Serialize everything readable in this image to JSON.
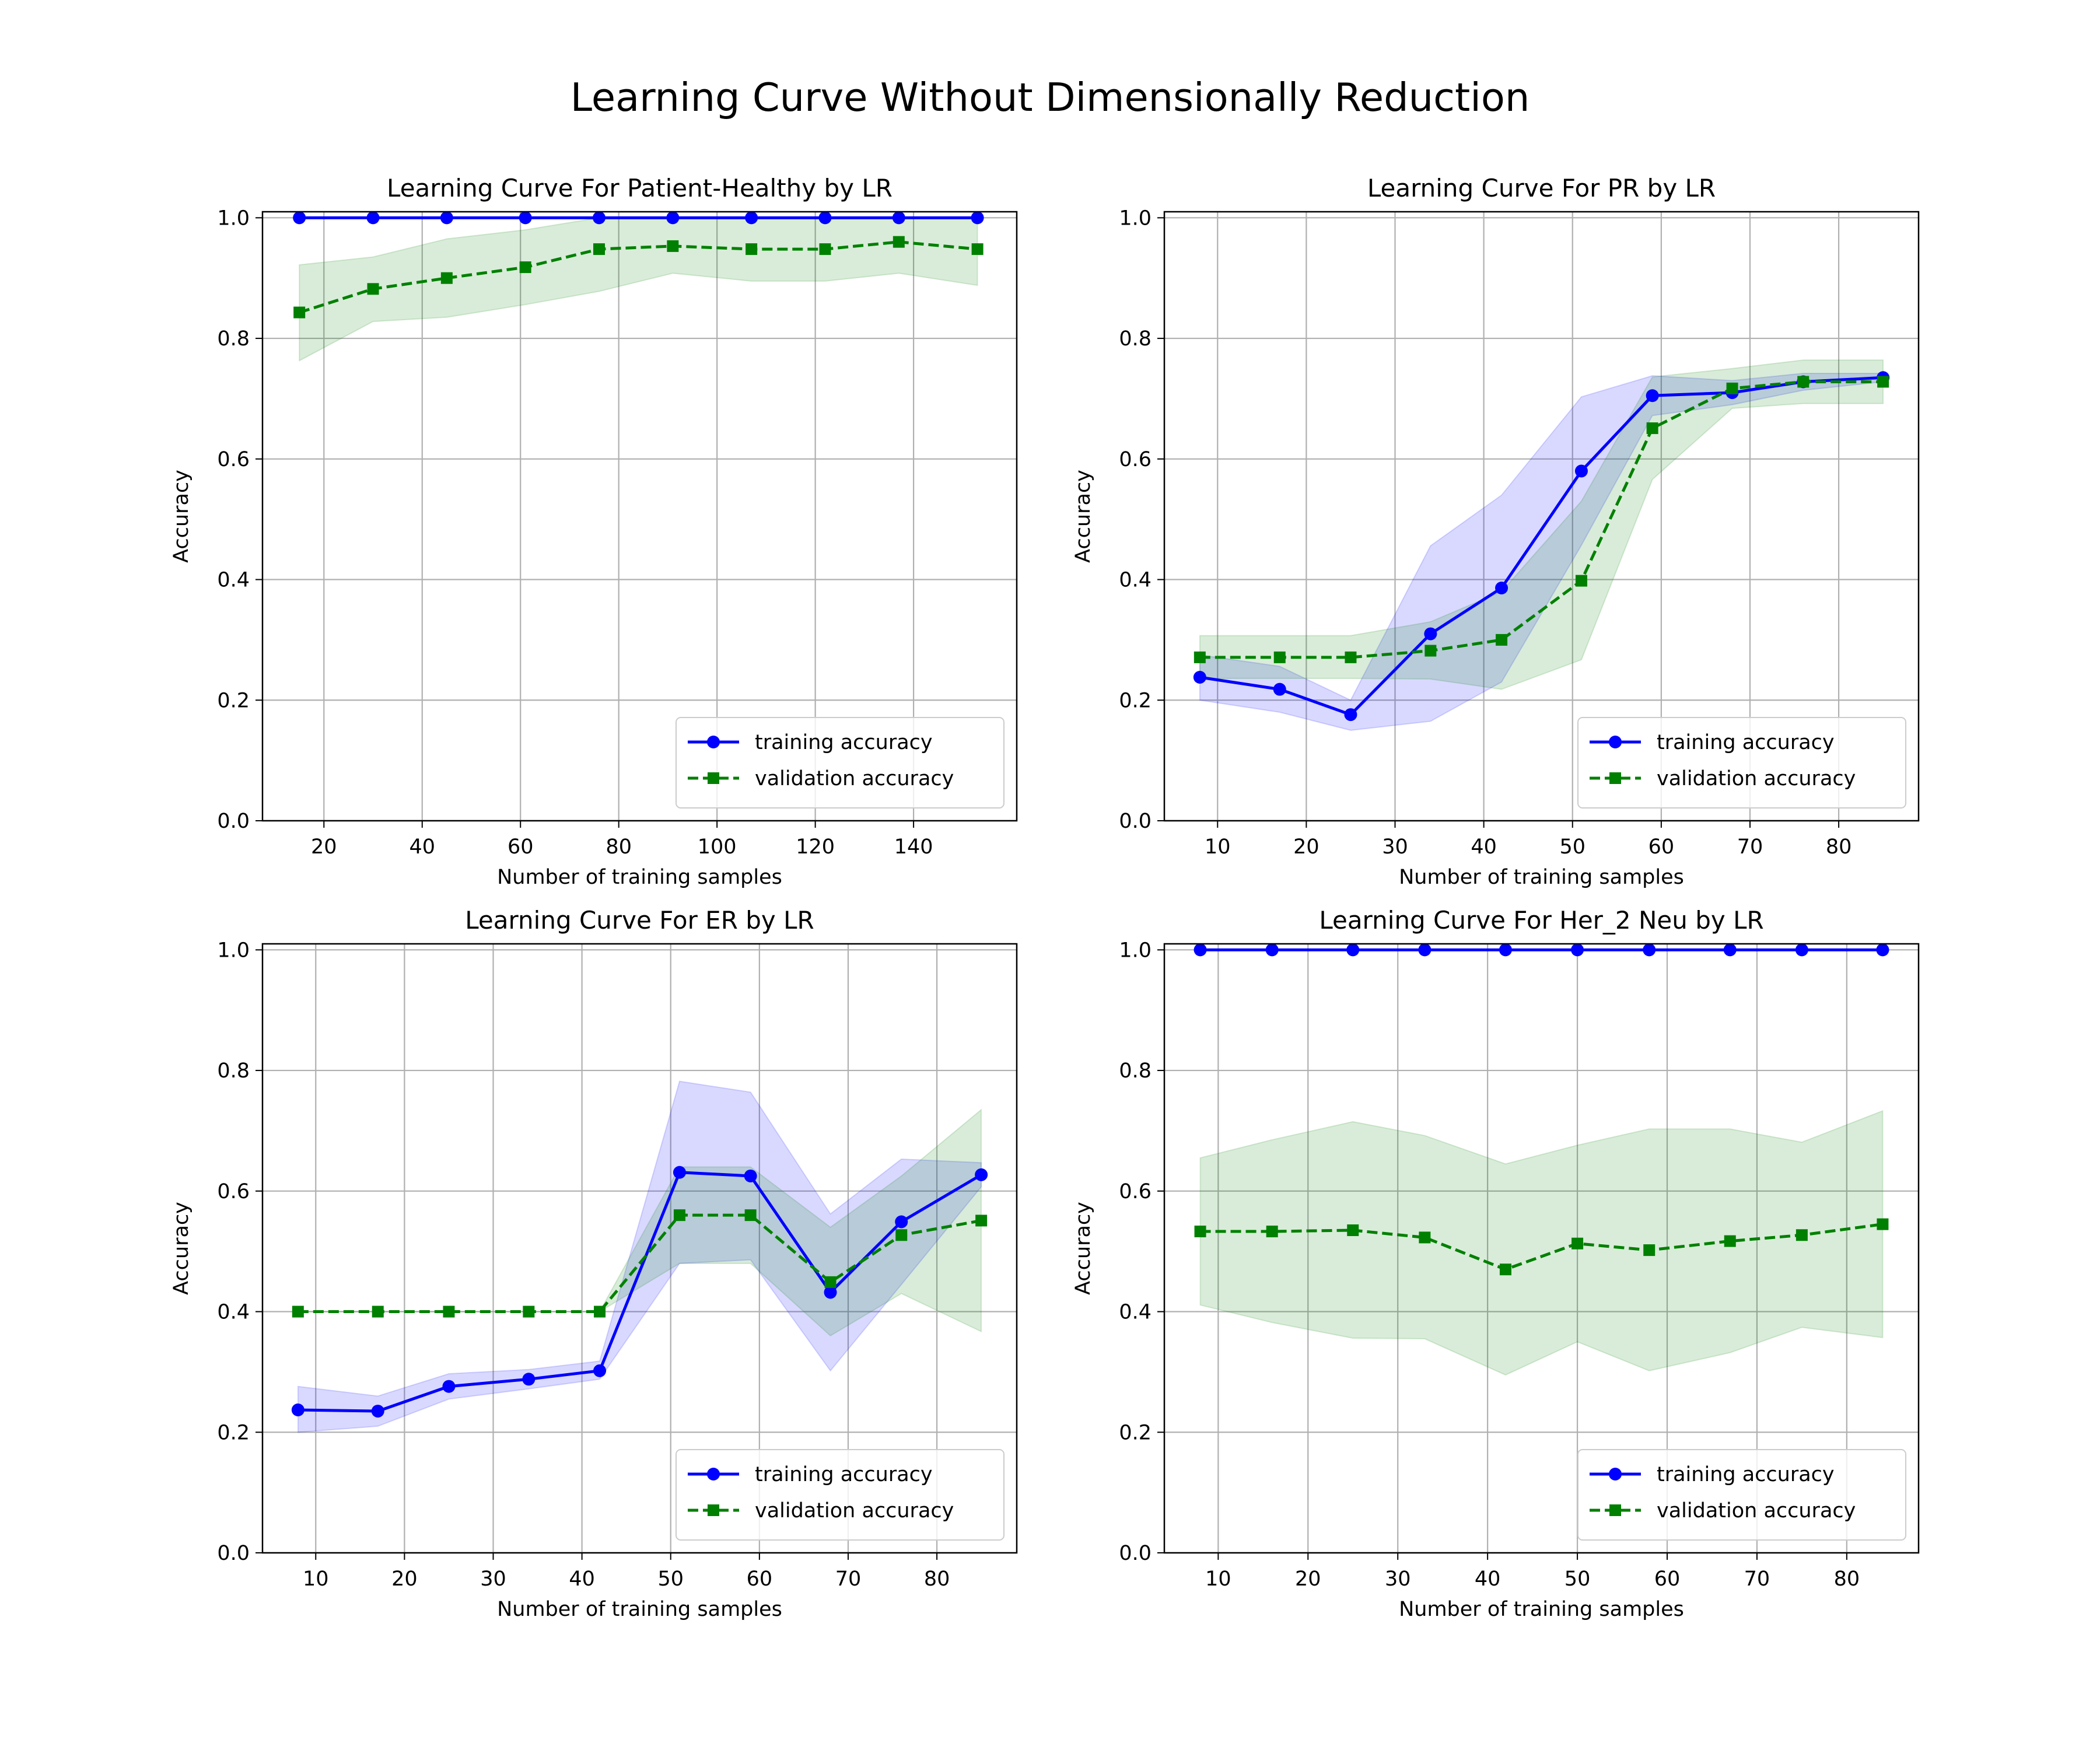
{
  "figure": {
    "title": "Learning Curve Without Dimensionally Reduction"
  },
  "colors": {
    "training": "#0000ff",
    "validation": "#008000",
    "training_band": "#0000ff",
    "validation_band": "#008000",
    "grid": "#b0b0b0"
  },
  "legend_labels": {
    "training": "training accuracy",
    "validation": "validation accuracy"
  },
  "chart_data": [
    {
      "type": "line",
      "title": "Learning Curve For Patient-Healthy by LR",
      "xlabel": "Number of training samples",
      "ylabel": "Accuracy",
      "xlim": [
        7.5,
        161
      ],
      "ylim": [
        0,
        1.01
      ],
      "xticks": [
        20,
        40,
        60,
        80,
        100,
        120,
        140
      ],
      "yticks": [
        0.0,
        0.2,
        0.4,
        0.6,
        0.8,
        1.0
      ],
      "grid": true,
      "legend_position": "lower-right",
      "x": [
        15,
        30,
        45,
        61,
        76,
        91,
        107,
        122,
        137,
        153
      ],
      "series": [
        {
          "name": "training accuracy",
          "marker": "circle",
          "linestyle": "solid",
          "values": [
            1.0,
            1.0,
            1.0,
            1.0,
            1.0,
            1.0,
            1.0,
            1.0,
            1.0,
            1.0
          ],
          "band_upper": [
            1.0,
            1.0,
            1.0,
            1.0,
            1.0,
            1.0,
            1.0,
            1.0,
            1.0,
            1.0
          ],
          "band_lower": [
            1.0,
            1.0,
            1.0,
            1.0,
            1.0,
            1.0,
            1.0,
            1.0,
            1.0,
            1.0
          ]
        },
        {
          "name": "validation accuracy",
          "marker": "square",
          "linestyle": "dashed",
          "values": [
            0.843,
            0.882,
            0.9,
            0.918,
            0.948,
            0.953,
            0.948,
            0.948,
            0.96,
            0.948
          ],
          "band_upper": [
            0.922,
            0.935,
            0.965,
            0.98,
            1.0,
            1.0,
            1.0,
            1.0,
            1.0,
            1.0
          ],
          "band_lower": [
            0.763,
            0.828,
            0.835,
            0.856,
            0.878,
            0.908,
            0.895,
            0.895,
            0.908,
            0.888
          ]
        }
      ]
    },
    {
      "type": "line",
      "title": "Learning Curve For PR by LR",
      "xlabel": "Number of training samples",
      "ylabel": "Accuracy",
      "xlim": [
        4,
        89
      ],
      "ylim": [
        0,
        1.01
      ],
      "xticks": [
        10,
        20,
        30,
        40,
        50,
        60,
        70,
        80
      ],
      "yticks": [
        0.0,
        0.2,
        0.4,
        0.6,
        0.8,
        1.0
      ],
      "grid": true,
      "legend_position": "lower-right",
      "x": [
        8,
        17,
        25,
        34,
        42,
        51,
        59,
        68,
        76,
        85
      ],
      "series": [
        {
          "name": "training accuracy",
          "marker": "circle",
          "linestyle": "solid",
          "values": [
            0.238,
            0.218,
            0.176,
            0.31,
            0.386,
            0.58,
            0.705,
            0.71,
            0.728,
            0.735
          ],
          "band_upper": [
            0.275,
            0.256,
            0.2,
            0.456,
            0.54,
            0.703,
            0.738,
            0.73,
            0.742,
            0.742
          ],
          "band_lower": [
            0.2,
            0.18,
            0.15,
            0.165,
            0.23,
            0.457,
            0.672,
            0.69,
            0.714,
            0.728
          ]
        },
        {
          "name": "validation accuracy",
          "marker": "square",
          "linestyle": "dashed",
          "values": [
            0.271,
            0.271,
            0.271,
            0.282,
            0.3,
            0.398,
            0.651,
            0.717,
            0.728,
            0.728
          ],
          "band_upper": [
            0.307,
            0.307,
            0.307,
            0.33,
            0.38,
            0.53,
            0.736,
            0.75,
            0.764,
            0.764
          ],
          "band_lower": [
            0.236,
            0.236,
            0.236,
            0.235,
            0.218,
            0.267,
            0.566,
            0.684,
            0.692,
            0.692
          ]
        }
      ]
    },
    {
      "type": "line",
      "title": "Learning Curve For ER by LR",
      "xlabel": "Number of training samples",
      "ylabel": "Accuracy",
      "xlim": [
        4,
        89
      ],
      "ylim": [
        0,
        1.01
      ],
      "xticks": [
        10,
        20,
        30,
        40,
        50,
        60,
        70,
        80
      ],
      "yticks": [
        0.0,
        0.2,
        0.4,
        0.6,
        0.8,
        1.0
      ],
      "grid": true,
      "legend_position": "lower-right",
      "x": [
        8,
        17,
        25,
        34,
        42,
        51,
        59,
        68,
        76,
        85
      ],
      "series": [
        {
          "name": "training accuracy",
          "marker": "circle",
          "linestyle": "solid",
          "values": [
            0.237,
            0.235,
            0.276,
            0.288,
            0.302,
            0.631,
            0.625,
            0.432,
            0.549,
            0.627
          ],
          "band_upper": [
            0.276,
            0.26,
            0.297,
            0.304,
            0.318,
            0.782,
            0.764,
            0.562,
            0.653,
            0.647
          ],
          "band_lower": [
            0.2,
            0.21,
            0.255,
            0.272,
            0.288,
            0.48,
            0.486,
            0.302,
            0.445,
            0.607
          ]
        },
        {
          "name": "validation accuracy",
          "marker": "square",
          "linestyle": "dashed",
          "values": [
            0.4,
            0.4,
            0.4,
            0.4,
            0.4,
            0.56,
            0.56,
            0.449,
            0.527,
            0.551
          ],
          "band_upper": [
            0.4,
            0.4,
            0.4,
            0.4,
            0.4,
            0.64,
            0.64,
            0.54,
            0.625,
            0.735
          ],
          "band_lower": [
            0.4,
            0.4,
            0.4,
            0.4,
            0.4,
            0.48,
            0.48,
            0.36,
            0.43,
            0.367
          ]
        }
      ]
    },
    {
      "type": "line",
      "title": "Learning Curve For Her_2 Neu by LR",
      "xlabel": "Number of training samples",
      "ylabel": "Accuracy",
      "xlim": [
        4,
        88
      ],
      "ylim": [
        0,
        1.01
      ],
      "xticks": [
        10,
        20,
        30,
        40,
        50,
        60,
        70,
        80
      ],
      "yticks": [
        0.0,
        0.2,
        0.4,
        0.6,
        0.8,
        1.0
      ],
      "grid": true,
      "legend_position": "lower-right",
      "x": [
        8,
        16,
        25,
        33,
        42,
        50,
        58,
        67,
        75,
        84
      ],
      "series": [
        {
          "name": "training accuracy",
          "marker": "circle",
          "linestyle": "solid",
          "values": [
            1.0,
            1.0,
            1.0,
            1.0,
            1.0,
            1.0,
            1.0,
            1.0,
            1.0,
            1.0
          ],
          "band_upper": [
            1.0,
            1.0,
            1.0,
            1.0,
            1.0,
            1.0,
            1.0,
            1.0,
            1.0,
            1.0
          ],
          "band_lower": [
            1.0,
            1.0,
            1.0,
            1.0,
            1.0,
            1.0,
            1.0,
            1.0,
            1.0,
            1.0
          ]
        },
        {
          "name": "validation accuracy",
          "marker": "square",
          "linestyle": "dashed",
          "values": [
            0.533,
            0.533,
            0.535,
            0.523,
            0.47,
            0.513,
            0.502,
            0.517,
            0.527,
            0.545
          ],
          "band_upper": [
            0.655,
            0.685,
            0.715,
            0.692,
            0.645,
            0.676,
            0.703,
            0.703,
            0.681,
            0.733
          ],
          "band_lower": [
            0.411,
            0.382,
            0.356,
            0.355,
            0.295,
            0.35,
            0.302,
            0.332,
            0.374,
            0.357
          ]
        }
      ]
    }
  ]
}
